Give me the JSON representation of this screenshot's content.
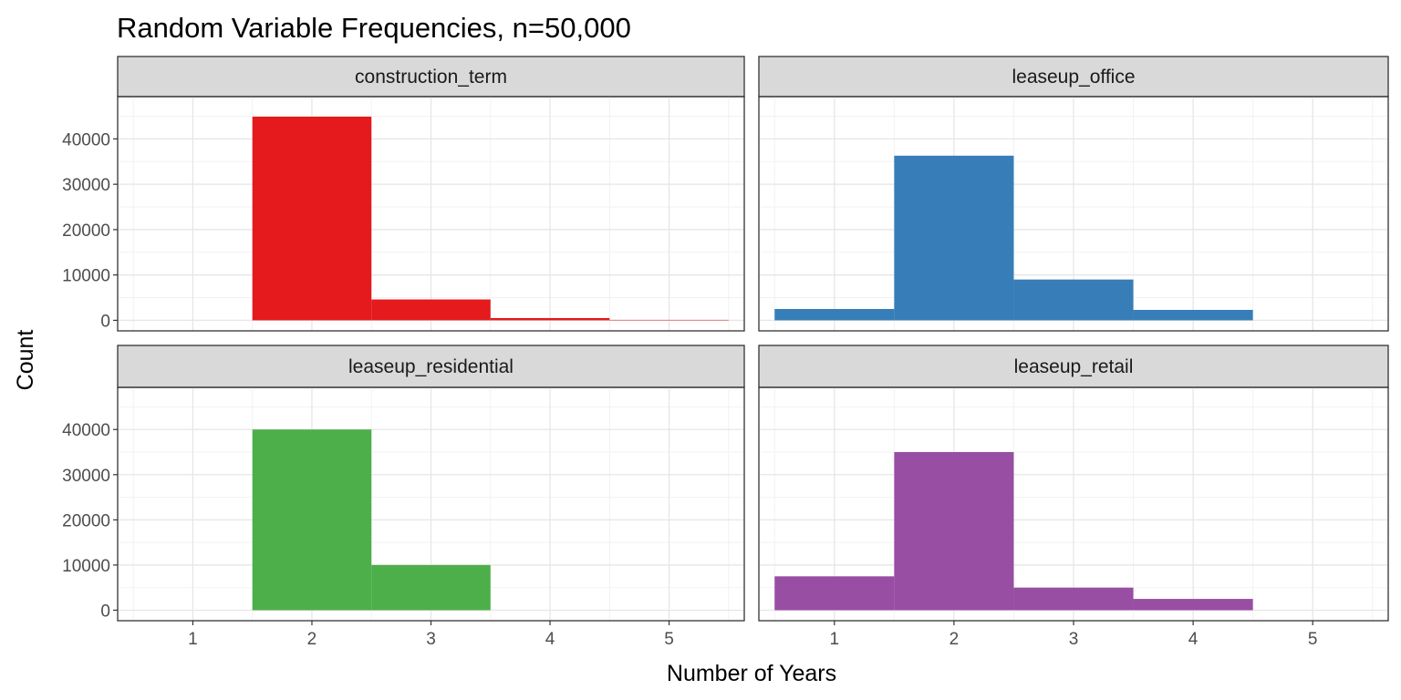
{
  "chart_data": {
    "type": "bar",
    "title": "Random Variable Frequencies, n=50,000",
    "xlabel": "Number of Years",
    "ylabel": "Count",
    "xlim": [
      0.5,
      5.5
    ],
    "ylim": [
      0,
      47000
    ],
    "x_ticks": [
      "1",
      "2",
      "3",
      "4",
      "5"
    ],
    "y_ticks": [
      "0",
      "10000",
      "20000",
      "30000",
      "40000"
    ],
    "grid": true,
    "legend": "none",
    "panels": [
      {
        "name": "construction_term",
        "color": "#e41a1c",
        "bars": [
          {
            "x": 2,
            "value": 44900
          },
          {
            "x": 3,
            "value": 4600
          },
          {
            "x": 4,
            "value": 500
          },
          {
            "x": 5,
            "value": 100
          }
        ]
      },
      {
        "name": "leaseup_office",
        "color": "#377eb8",
        "bars": [
          {
            "x": 1,
            "value": 2500
          },
          {
            "x": 2,
            "value": 36300
          },
          {
            "x": 3,
            "value": 9000
          },
          {
            "x": 4,
            "value": 2300
          }
        ]
      },
      {
        "name": "leaseup_residential",
        "color": "#4daf4a",
        "bars": [
          {
            "x": 2,
            "value": 40000
          },
          {
            "x": 3,
            "value": 10000
          }
        ]
      },
      {
        "name": "leaseup_retail",
        "color": "#984ea3",
        "bars": [
          {
            "x": 1,
            "value": 7500
          },
          {
            "x": 2,
            "value": 35000
          },
          {
            "x": 3,
            "value": 5000
          },
          {
            "x": 4,
            "value": 2500
          }
        ]
      }
    ]
  }
}
